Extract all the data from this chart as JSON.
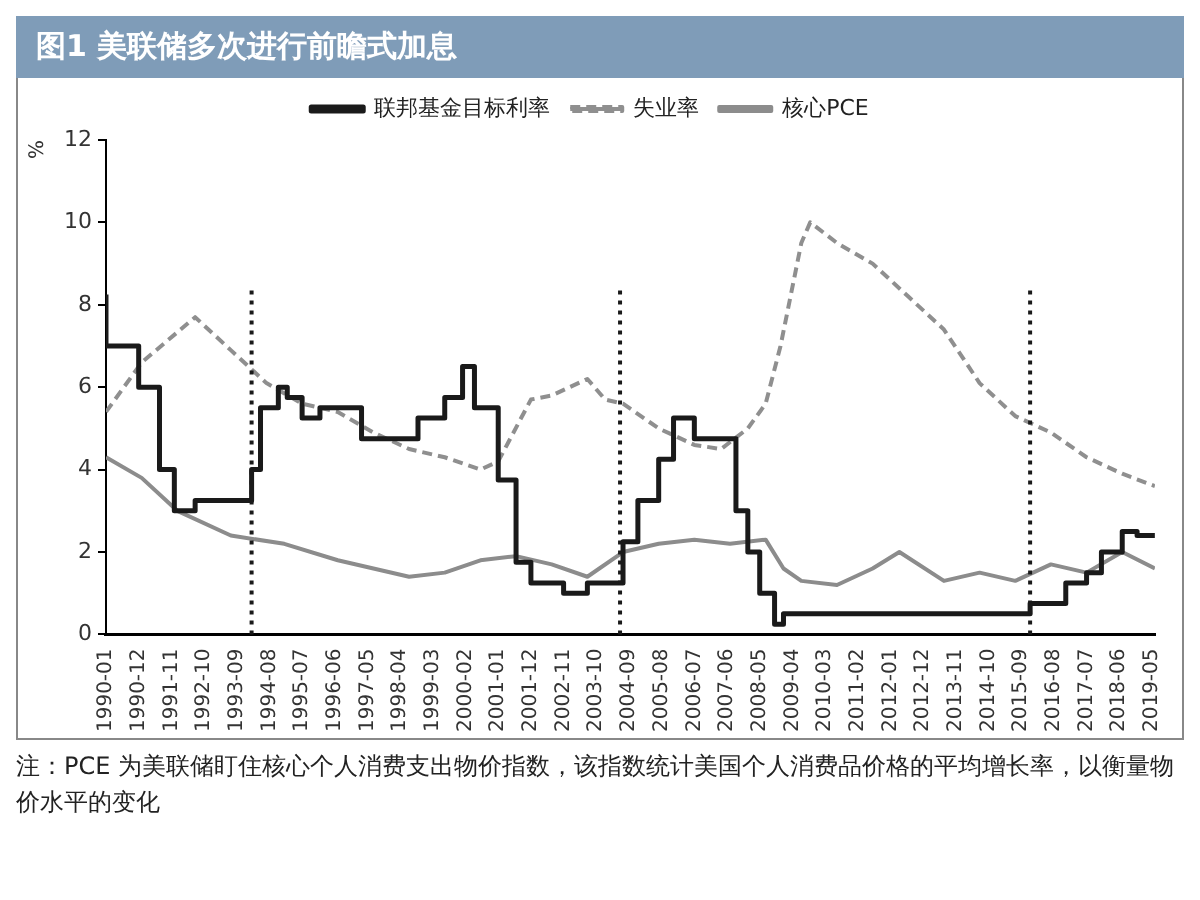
{
  "chart_data": {
    "type": "line",
    "title": "图1 美联储多次进行前瞻式加息",
    "ylabel": "%",
    "annotations": [
      "注：PCE 为美联储盯住核心个人消费支出物价指数，该指数统计美国个人消费品价格的平均增长率，以衡量物价水平的变化"
    ],
    "series": [
      {
        "name": "联邦基金目标利率",
        "type": "step",
        "color": "#1a1a1a",
        "x": [
          "1990-01",
          "1990-12",
          "1991-07",
          "1991-12",
          "1992-07",
          "1994-02",
          "1994-05",
          "1994-11",
          "1995-02",
          "1995-07",
          "1996-01",
          "1997-03",
          "1998-10",
          "1999-07",
          "2000-01",
          "2000-05",
          "2001-01",
          "2001-07",
          "2001-12",
          "2002-11",
          "2003-07",
          "2004-07",
          "2004-12",
          "2005-07",
          "2005-12",
          "2006-07",
          "2007-09",
          "2008-01",
          "2008-05",
          "2008-10",
          "2009-01",
          "2015-12",
          "2016-12",
          "2017-07",
          "2017-12",
          "2018-07",
          "2018-12",
          "2019-06"
        ],
        "values": [
          8.25,
          7.0,
          6.0,
          4.0,
          3.0,
          3.25,
          4.0,
          5.5,
          6.0,
          5.75,
          5.25,
          5.5,
          4.75,
          5.25,
          5.75,
          6.5,
          5.5,
          3.75,
          1.75,
          1.25,
          1.0,
          1.25,
          2.25,
          3.25,
          4.25,
          5.25,
          4.75,
          3.0,
          2.0,
          1.0,
          0.25,
          0.5,
          0.75,
          1.25,
          1.5,
          2.0,
          2.5,
          2.4
        ]
      },
      {
        "name": "失业率",
        "color": "#8f8f8f",
        "line_style": "dashed",
        "x": [
          "1990-01",
          "1991-01",
          "1992-07",
          "1993-07",
          "1994-07",
          "1995-07",
          "1996-07",
          "1997-07",
          "1998-07",
          "1999-07",
          "2000-07",
          "2001-01",
          "2001-12",
          "2002-07",
          "2003-07",
          "2004-01",
          "2004-07",
          "2005-07",
          "2006-07",
          "2007-04",
          "2008-01",
          "2008-07",
          "2008-12",
          "2009-07",
          "2009-10",
          "2010-07",
          "2011-07",
          "2012-07",
          "2013-07",
          "2014-07",
          "2015-07",
          "2016-07",
          "2017-07",
          "2018-07",
          "2019-06"
        ],
        "values": [
          5.4,
          6.6,
          7.7,
          6.9,
          6.1,
          5.6,
          5.4,
          4.9,
          4.5,
          4.3,
          4.0,
          4.2,
          5.7,
          5.8,
          6.2,
          5.7,
          5.6,
          5.0,
          4.6,
          4.5,
          5.0,
          5.6,
          7.0,
          9.5,
          10.0,
          9.5,
          9.0,
          8.2,
          7.4,
          6.1,
          5.3,
          4.9,
          4.3,
          3.9,
          3.6
        ]
      },
      {
        "name": "核心PCE",
        "color": "#8c8c8c",
        "x": [
          "1990-01",
          "1991-01",
          "1992-01",
          "1993-07",
          "1995-01",
          "1996-07",
          "1997-07",
          "1998-07",
          "1999-07",
          "2000-07",
          "2001-07",
          "2002-07",
          "2003-07",
          "2004-07",
          "2005-07",
          "2006-07",
          "2007-07",
          "2008-07",
          "2009-01",
          "2009-07",
          "2010-07",
          "2011-07",
          "2012-04",
          "2013-07",
          "2014-07",
          "2015-07",
          "2016-07",
          "2017-07",
          "2018-07",
          "2019-06"
        ],
        "values": [
          4.3,
          3.8,
          3.0,
          2.4,
          2.2,
          1.8,
          1.6,
          1.4,
          1.5,
          1.8,
          1.9,
          1.7,
          1.4,
          2.0,
          2.2,
          2.3,
          2.2,
          2.3,
          1.6,
          1.3,
          1.2,
          1.6,
          2.0,
          1.3,
          1.5,
          1.3,
          1.7,
          1.5,
          2.0,
          1.6
        ]
      }
    ],
    "xlim": [
      "1990-01",
      "2019-06"
    ],
    "xticks": [
      "1990-01",
      "1990-12",
      "1991-11",
      "1992-10",
      "1993-09",
      "1994-08",
      "1995-07",
      "1996-06",
      "1997-05",
      "1998-04",
      "1999-03",
      "2000-02",
      "2001-01",
      "2001-12",
      "2002-11",
      "2003-10",
      "2004-09",
      "2005-08",
      "2006-07",
      "2007-06",
      "2008-05",
      "2009-04",
      "2010-03",
      "2011-02",
      "2012-01",
      "2012-12",
      "2013-11",
      "2014-10",
      "2015-09",
      "2016-08",
      "2017-07",
      "2018-06",
      "2019-05"
    ],
    "ylim": [
      0,
      12
    ],
    "yticks": [
      0,
      2,
      4,
      6,
      8,
      10,
      12
    ],
    "ref_lines": [
      {
        "axis": "x",
        "value": "1994-02",
        "color": "#1a1a1a",
        "line_style": "dotted"
      },
      {
        "axis": "x",
        "value": "2004-06",
        "color": "#1a1a1a",
        "line_style": "dotted"
      },
      {
        "axis": "x",
        "value": "2015-12",
        "color": "#1a1a1a",
        "line_style": "dotted"
      }
    ],
    "grid": false,
    "legend": "top",
    "marker": "none"
  }
}
